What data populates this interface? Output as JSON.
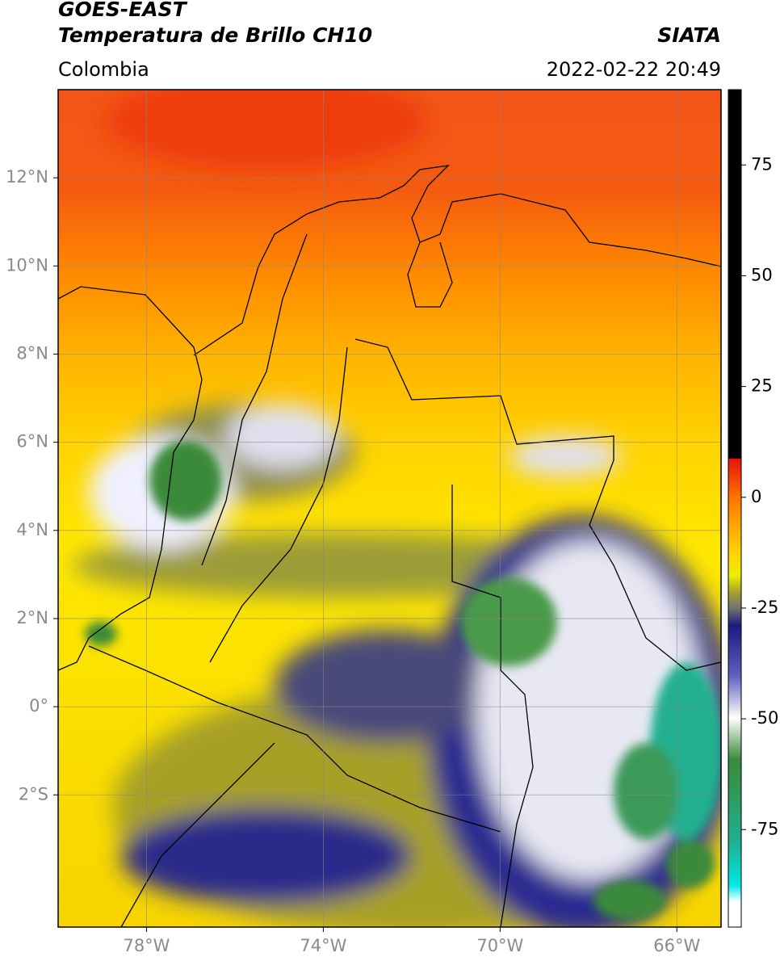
{
  "header": {
    "title": "GOES-EAST",
    "subtitle": "Temperatura de Brillo CH10",
    "source": "SIATA",
    "region": "Colombia",
    "timestamp": "2022-02-22 20:49"
  },
  "map": {
    "xlim": [
      -80,
      -65
    ],
    "ylim": [
      -5,
      14
    ],
    "xticks": [
      {
        "value": -78,
        "label": "78°W"
      },
      {
        "value": -74,
        "label": "74°W"
      },
      {
        "value": -70,
        "label": "70°W"
      },
      {
        "value": -66,
        "label": "66°W"
      }
    ],
    "yticks": [
      {
        "value": 12,
        "label": "12°N"
      },
      {
        "value": 10,
        "label": "10°N"
      },
      {
        "value": 8,
        "label": "8°N"
      },
      {
        "value": 6,
        "label": "6°N"
      },
      {
        "value": 4,
        "label": "4°N"
      },
      {
        "value": 2,
        "label": "2°N"
      },
      {
        "value": 0,
        "label": "0°"
      },
      {
        "value": -2,
        "label": "2°S"
      }
    ],
    "grid": true
  },
  "colorbar": {
    "lim": [
      -97,
      92
    ],
    "ticks": [
      75,
      50,
      25,
      0,
      -25,
      -50,
      -75
    ]
  }
}
